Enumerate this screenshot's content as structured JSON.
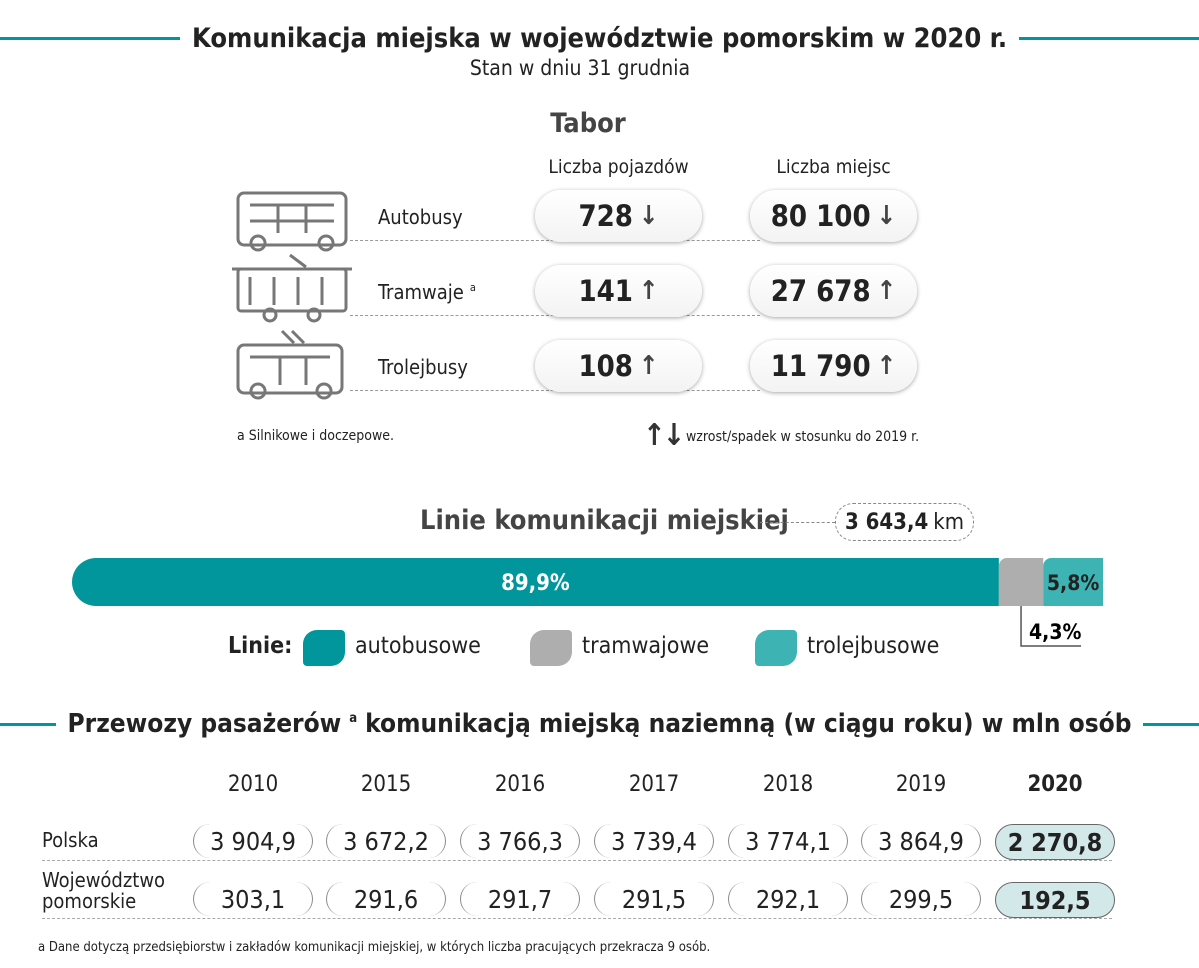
{
  "header": {
    "title": "Komunikacja miejska w województwie pomorskim w 2020 r.",
    "subtitle": "Stan w dniu 31 grudnia"
  },
  "tabor": {
    "title": "Tabor",
    "columns": [
      "Liczba pojazdów",
      "Liczba miejsc"
    ],
    "rows": [
      {
        "label": "Autobusy",
        "vehicles": "728",
        "vehicles_trend": "down",
        "places": "80 100",
        "places_trend": "down"
      },
      {
        "label": "Tramwaje",
        "note": "a",
        "vehicles": "141",
        "vehicles_trend": "up",
        "places": "27 678",
        "places_trend": "up"
      },
      {
        "label": "Trolejbusy",
        "vehicles": "108",
        "vehicles_trend": "up",
        "places": "11 790",
        "places_trend": "up"
      }
    ],
    "footnote": "a Silnikowe i doczepowe.",
    "trend_legend": "wzrost/spadek w stosunku do 2019 r."
  },
  "chart_data": {
    "type": "stacked-bar",
    "title": "Linie komunikacji miejskiej",
    "total": "3 643,4",
    "total_unit": "km",
    "legend_title": "Linie:",
    "xlim": [
      0,
      100
    ],
    "series": [
      {
        "name": "autobusowe",
        "color": "#00969b",
        "values": [
          89.9
        ],
        "value_labels": [
          "89,9%"
        ]
      },
      {
        "name": "tramwajowe",
        "color": "#aeaeae",
        "values": [
          4.3
        ],
        "value_labels": [
          "4,3%"
        ]
      },
      {
        "name": "trolejbusowe",
        "color": "#3db3b4",
        "values": [
          5.8
        ],
        "value_labels": [
          "5,8%"
        ]
      }
    ]
  },
  "passengers": {
    "title": "Przewozy pasażerów",
    "title_note": "a",
    "title_rest": "komunikacją miejską naziemną (w ciągu roku) w mln osób",
    "years": [
      "2010",
      "2015",
      "2016",
      "2017",
      "2018",
      "2019",
      "2020"
    ],
    "rows": [
      {
        "label": "Polska",
        "values": [
          "3 904,9",
          "3 672,2",
          "3 766,3",
          "3 739,4",
          "3 774,1",
          "3 864,9",
          "2 270,8"
        ]
      },
      {
        "label": "Województwo pomorskie",
        "values": [
          "303,1",
          "291,6",
          "291,7",
          "291,5",
          "292,1",
          "299,5",
          "192,5"
        ]
      }
    ],
    "footnote": "a Dane dotyczą przedsiębiorstw i zakładów komunikacji miejskiej, w których liczba pracujących przekracza 9 osób."
  }
}
